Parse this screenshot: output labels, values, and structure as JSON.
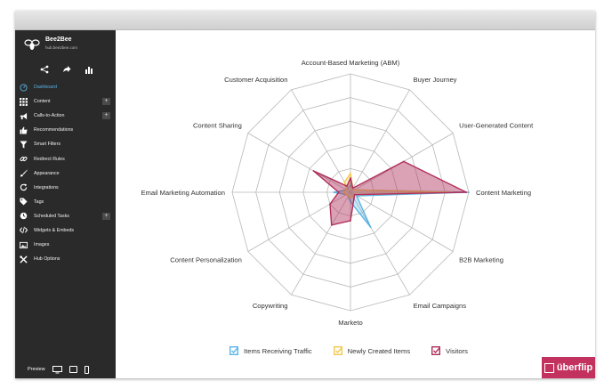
{
  "brand": {
    "name": "Bee2Bee",
    "url": "hub.bee2bee.com",
    "logo_icon": "bee-logo-icon"
  },
  "toolbar_icons": [
    "share-icon",
    "forward-icon",
    "bar-chart-icon"
  ],
  "nav": [
    {
      "label": "Dashboard",
      "icon": "dashboard-icon",
      "active": true
    },
    {
      "label": "Content",
      "icon": "grid-icon",
      "plus": "+"
    },
    {
      "label": "Calls-to-Action",
      "icon": "megaphone-icon",
      "plus": "+"
    },
    {
      "label": "Recommendations",
      "icon": "thumbs-up-icon"
    },
    {
      "label": "Smart Filters",
      "icon": "filter-icon"
    },
    {
      "label": "Redirect Rules",
      "icon": "link-icon"
    },
    {
      "label": "Appearance",
      "icon": "paint-brush-icon"
    },
    {
      "label": "Integrations",
      "icon": "refresh-icon"
    },
    {
      "label": "Tags",
      "icon": "tag-icon"
    },
    {
      "label": "Scheduled Tasks",
      "icon": "clock-icon",
      "plus": "+"
    },
    {
      "label": "Widgets & Embeds",
      "icon": "code-icon"
    },
    {
      "label": "Images",
      "icon": "image-icon"
    },
    {
      "label": "Hub Options",
      "icon": "tools-icon"
    }
  ],
  "preview": {
    "label": "Preview",
    "icons": [
      "desktop-icon",
      "tablet-icon",
      "mobile-icon"
    ]
  },
  "chart_data": {
    "type": "radar",
    "categories": [
      "Account-Based Marketing (ABM)",
      "Buyer Journey",
      "User-Generated Content",
      "Content Marketing",
      "B2B Marketing",
      "Email Campaigns",
      "Marketo",
      "Copywriting",
      "Content Personalization",
      "Email Marketing Automation",
      "Content Sharing",
      "Customer Acquisition"
    ],
    "rlim": [
      0,
      5
    ],
    "grid_rings": 5,
    "legend_position": "bottom",
    "series": [
      {
        "name": "Items Receiving Traffic",
        "color": "#5ab4e6",
        "values": [
          0.3,
          0.2,
          0.2,
          5,
          0.3,
          1.7,
          0.4,
          0.2,
          0.2,
          0.7,
          0.2,
          0.2
        ]
      },
      {
        "name": "Newly Created Items",
        "color": "#f2c94c",
        "values": [
          0.8,
          0.2,
          0.2,
          4.3,
          0.2,
          0.2,
          0.2,
          0.2,
          0.2,
          0.3,
          0.2,
          0.5
        ]
      },
      {
        "name": "Visitors",
        "color": "#b0305a",
        "values": [
          0.6,
          0.2,
          2.6,
          4.9,
          0.2,
          0.3,
          1.2,
          1.6,
          1.0,
          0.5,
          1.8,
          0.3
        ]
      }
    ]
  },
  "uberflip": {
    "label": "überflip",
    "icon": "uberflip-logo-icon"
  }
}
